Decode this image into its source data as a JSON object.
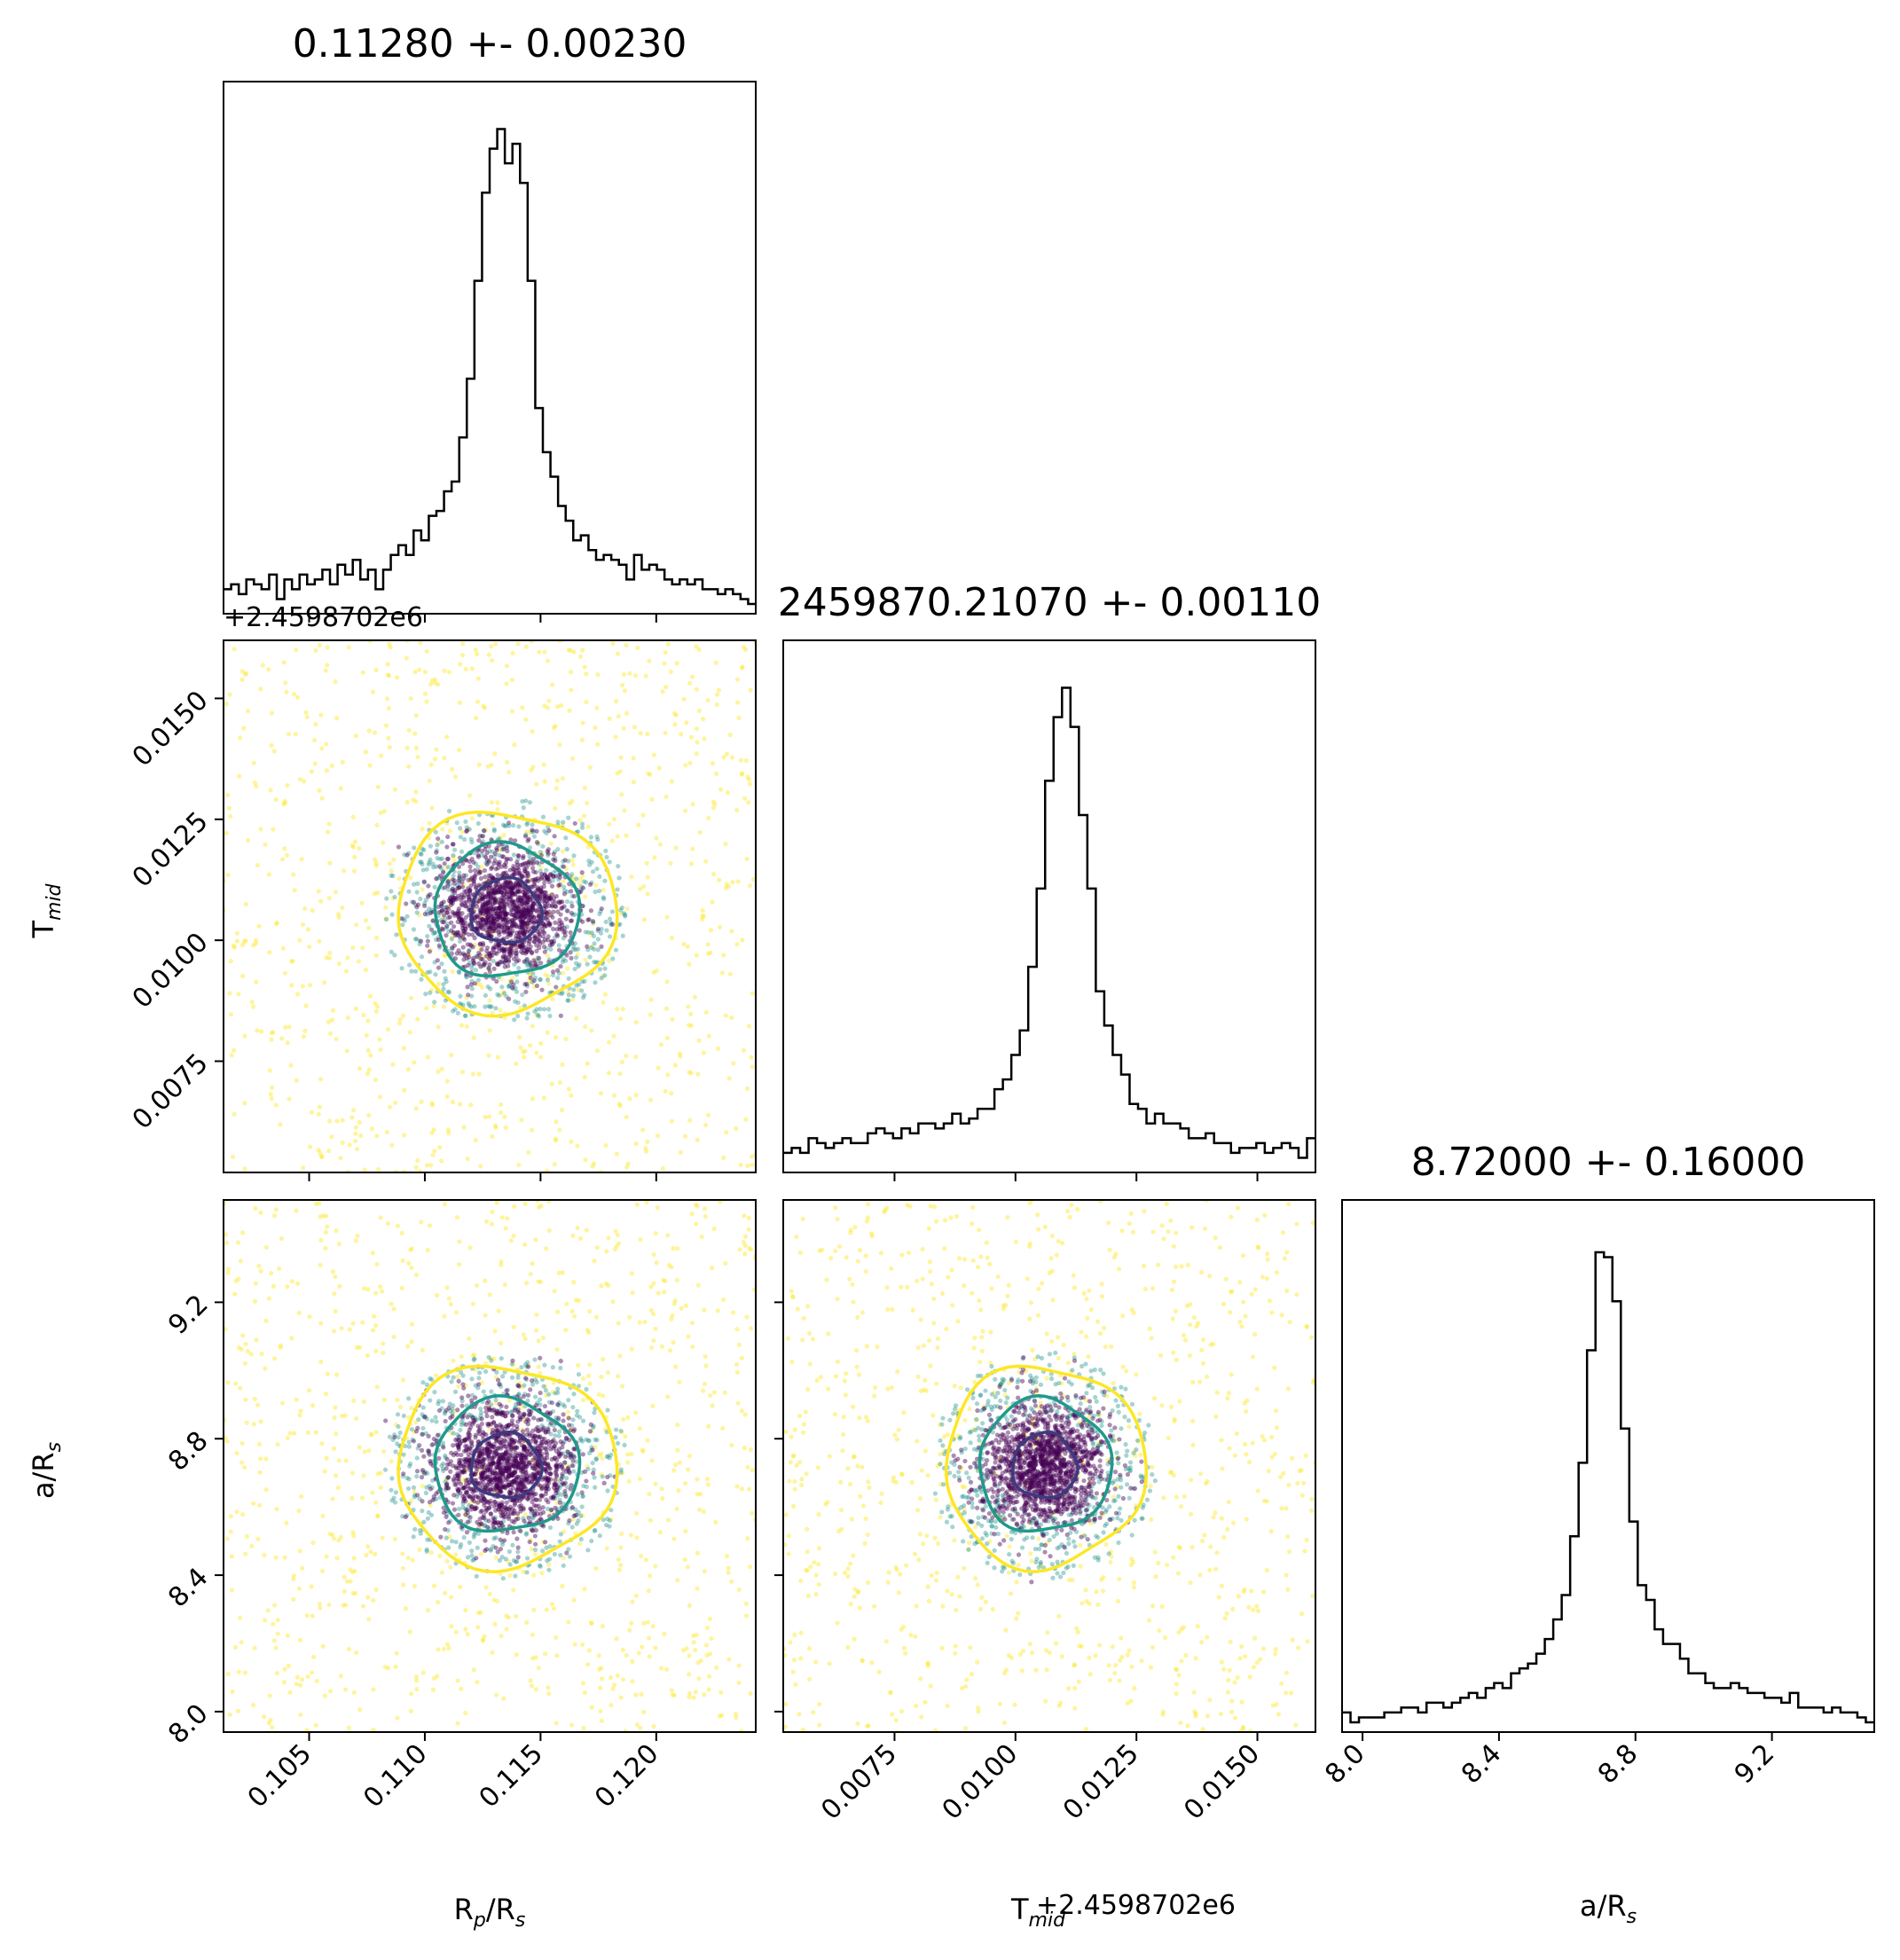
{
  "figure": {
    "panels": {
      "rp": {
        "title": "0.11280 +- 0.00230"
      },
      "tmid": {
        "title": "2459870.21070 +- 0.00110"
      },
      "ars": {
        "title": "8.72000 +- 0.16000"
      }
    },
    "labels": {
      "x_rp": "R_p/R_s",
      "x_tmid": "T_mid",
      "x_ars": "a/R_s",
      "y_tmid": "T_mid",
      "y_ars": "a/R_s"
    },
    "offset_text": "+2.4598702e6",
    "colors": {
      "histogram": "#000000",
      "contour_inner": "#3b3b7e",
      "contour_middle": "#1f9a8a",
      "contour_outer": "#fde725",
      "points_core": "#440154",
      "points_mid": "#21918c",
      "points_outer": "#fde725"
    }
  },
  "chart_data": {
    "type": "corner",
    "parameters": [
      {
        "key": "rp",
        "label": "R_p/R_s",
        "median": 0.1128,
        "sigma": 0.0023,
        "range": [
          0.1013,
          0.1243
        ],
        "ticks": [
          0.105,
          0.11,
          0.115,
          0.12
        ],
        "tick_labels": [
          "0.105",
          "0.110",
          "0.115",
          "0.120"
        ],
        "hist_peak": 0.1135
      },
      {
        "key": "tmid",
        "label": "T_mid",
        "median": 2459870.2107,
        "sigma": 0.0011,
        "offset": 2459870.2,
        "range": [
          0.0052,
          0.0162
        ],
        "ticks": [
          0.0075,
          0.01,
          0.0125,
          0.015
        ],
        "tick_labels": [
          "0.0075",
          "0.0100",
          "0.0125",
          "0.0150"
        ],
        "hist_peak": 0.0106
      },
      {
        "key": "ars",
        "label": "a/R_s",
        "median": 8.72,
        "sigma": 0.16,
        "range": [
          7.94,
          9.5
        ],
        "ticks": [
          8.0,
          8.4,
          8.8,
          9.2
        ],
        "tick_labels": [
          "8.0",
          "8.4",
          "8.8",
          "9.2"
        ],
        "hist_peak": 8.71
      }
    ],
    "histograms": [
      {
        "param": "rp",
        "bins": [
          0.1013,
          0.1243
        ],
        "counts": [
          0.05,
          0.06,
          0.04,
          0.07,
          0.06,
          0.05,
          0.08,
          0.03,
          0.07,
          0.05,
          0.08,
          0.06,
          0.07,
          0.09,
          0.06,
          0.1,
          0.08,
          0.11,
          0.07,
          0.09,
          0.05,
          0.09,
          0.12,
          0.14,
          0.12,
          0.17,
          0.15,
          0.2,
          0.21,
          0.25,
          0.27,
          0.36,
          0.48,
          0.68,
          0.86,
          0.95,
          0.99,
          0.92,
          0.96,
          0.88,
          0.68,
          0.42,
          0.33,
          0.28,
          0.22,
          0.19,
          0.15,
          0.16,
          0.13,
          0.11,
          0.12,
          0.11,
          0.1,
          0.07,
          0.12,
          0.09,
          0.1,
          0.09,
          0.07,
          0.06,
          0.07,
          0.06,
          0.07,
          0.05,
          0.05,
          0.04,
          0.05,
          0.04,
          0.03,
          0.02
        ]
      },
      {
        "param": "tmid",
        "bins": [
          0.0052,
          0.0162
        ],
        "counts": [
          0.04,
          0.05,
          0.04,
          0.07,
          0.06,
          0.05,
          0.06,
          0.07,
          0.06,
          0.06,
          0.08,
          0.09,
          0.08,
          0.07,
          0.09,
          0.08,
          0.1,
          0.1,
          0.09,
          0.1,
          0.12,
          0.1,
          0.11,
          0.13,
          0.13,
          0.17,
          0.19,
          0.24,
          0.29,
          0.42,
          0.58,
          0.8,
          0.93,
          0.99,
          0.91,
          0.73,
          0.58,
          0.37,
          0.3,
          0.24,
          0.2,
          0.14,
          0.13,
          0.1,
          0.12,
          0.1,
          0.1,
          0.09,
          0.07,
          0.07,
          0.08,
          0.06,
          0.06,
          0.04,
          0.05,
          0.05,
          0.06,
          0.04,
          0.05,
          0.06,
          0.05,
          0.03,
          0.07
        ]
      },
      {
        "param": "ars",
        "bins": [
          7.94,
          9.5
        ],
        "counts": [
          0.04,
          0.02,
          0.03,
          0.03,
          0.03,
          0.04,
          0.04,
          0.05,
          0.05,
          0.04,
          0.06,
          0.06,
          0.05,
          0.06,
          0.07,
          0.08,
          0.07,
          0.09,
          0.1,
          0.09,
          0.12,
          0.13,
          0.14,
          0.16,
          0.19,
          0.23,
          0.28,
          0.4,
          0.55,
          0.78,
          0.98,
          0.97,
          0.88,
          0.62,
          0.43,
          0.3,
          0.27,
          0.21,
          0.18,
          0.18,
          0.15,
          0.12,
          0.12,
          0.1,
          0.09,
          0.09,
          0.1,
          0.09,
          0.08,
          0.08,
          0.07,
          0.07,
          0.06,
          0.08,
          0.05,
          0.05,
          0.05,
          0.04,
          0.05,
          0.04,
          0.04,
          0.03,
          0.02
        ]
      }
    ],
    "pairs": [
      {
        "x": "rp",
        "y": "tmid",
        "center": [
          0.1135,
          0.0106
        ],
        "contour_radii_sigma": [
          1,
          2,
          3
        ],
        "core_sigma": [
          0.0016,
          0.0007
        ]
      },
      {
        "x": "rp",
        "y": "ars",
        "center": [
          0.1135,
          8.72
        ],
        "contour_radii_sigma": [
          1,
          2,
          3
        ],
        "core_sigma": [
          0.0016,
          0.1
        ]
      },
      {
        "x": "tmid",
        "y": "ars",
        "center": [
          0.0106,
          8.72
        ],
        "contour_radii_sigma": [
          1,
          2,
          3
        ],
        "core_sigma": [
          0.0007,
          0.1
        ]
      }
    ]
  }
}
